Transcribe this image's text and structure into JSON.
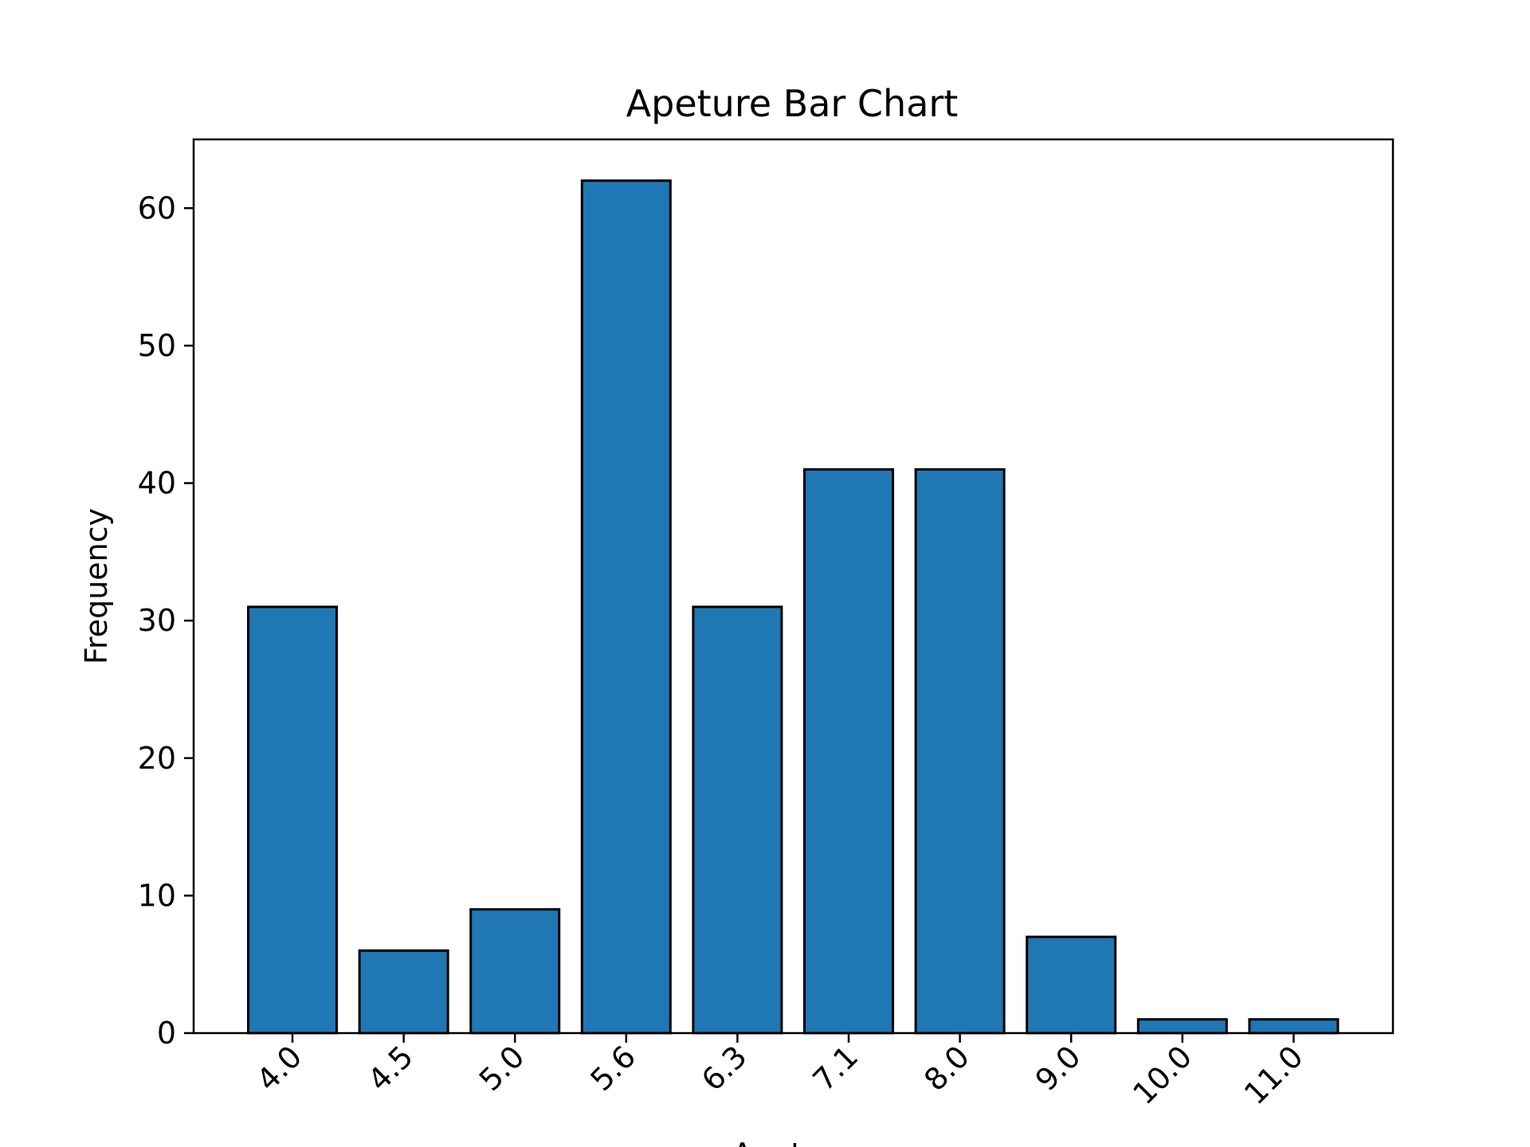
{
  "chart_data": {
    "type": "bar",
    "title": "Apeture Bar Chart",
    "xlabel": "Apeture",
    "ylabel": "Frequency",
    "categories": [
      "4.0",
      "4.5",
      "5.0",
      "5.6",
      "6.3",
      "7.1",
      "8.0",
      "9.0",
      "10.0",
      "11.0"
    ],
    "values": [
      31,
      6,
      9,
      62,
      31,
      41,
      41,
      7,
      1,
      1
    ],
    "ylim": [
      0,
      65
    ],
    "yticks": [
      0,
      10,
      20,
      30,
      40,
      50,
      60
    ],
    "grid": false,
    "legend": "none",
    "colors": {
      "bar_fill": "#1f77b4",
      "bar_edge": "#000000",
      "axis": "#000000"
    }
  }
}
